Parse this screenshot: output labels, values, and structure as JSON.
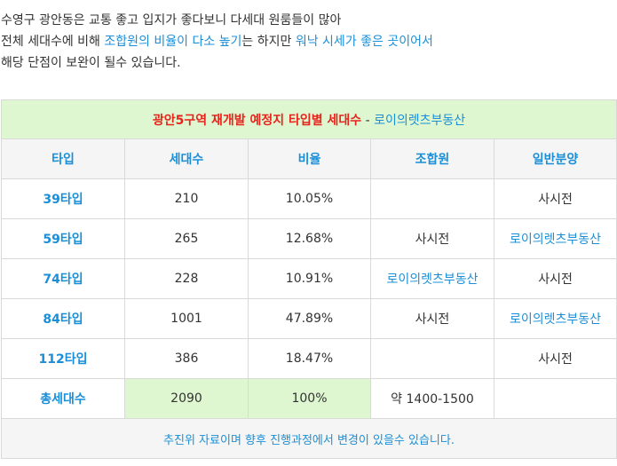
{
  "intro": {
    "line1": "수영구 광안동은 교통 좋고 입지가 좋다보니 다세대 원룸들이 많아",
    "line2_pre": "전체 세대수에 비해 ",
    "line2_hl1": "조합원의 비율이 다소 높기",
    "line2_mid": "는 하지만 ",
    "line2_hl2": "워낙 시세가 좋은 곳이어서",
    "line3": "해당 단점이 보완이 될수 있습니다."
  },
  "table": {
    "title": "광안5구역 재개발 예정지 타입별 세대수",
    "title_sep": " - ",
    "title_source": "로이의렛츠부동산",
    "headers": [
      "타입",
      "세대수",
      "비율",
      "조합원",
      "일반분양"
    ],
    "rows": [
      {
        "type": "39타입",
        "units": "210",
        "ratio": "10.05%",
        "members": "",
        "general": "사시전"
      },
      {
        "type": "59타입",
        "units": "265",
        "ratio": "12.68%",
        "members": "사시전",
        "general": "로이의렛츠부동산"
      },
      {
        "type": "74타입",
        "units": "228",
        "ratio": "10.91%",
        "members": "로이의렛츠부동산",
        "general": "사시전"
      },
      {
        "type": "84타입",
        "units": "1001",
        "ratio": "47.89%",
        "members": "사시전",
        "general": "로이의렛츠부동산"
      },
      {
        "type": "112타입",
        "units": "386",
        "ratio": "18.47%",
        "members": "",
        "general": "사시전"
      }
    ],
    "total": {
      "label": "총세대수",
      "units": "2090",
      "ratio": "100%",
      "members": "약 1400-1500",
      "general": ""
    },
    "note": "추진위 자료이며 향후 진행과정에서 변경이 있을수 있습니다."
  },
  "colors": {
    "accent_blue": "#1a8fd8",
    "title_red": "#e8231c",
    "highlight_green": "#dff7d0",
    "header_gray": "#f5f5f5"
  }
}
